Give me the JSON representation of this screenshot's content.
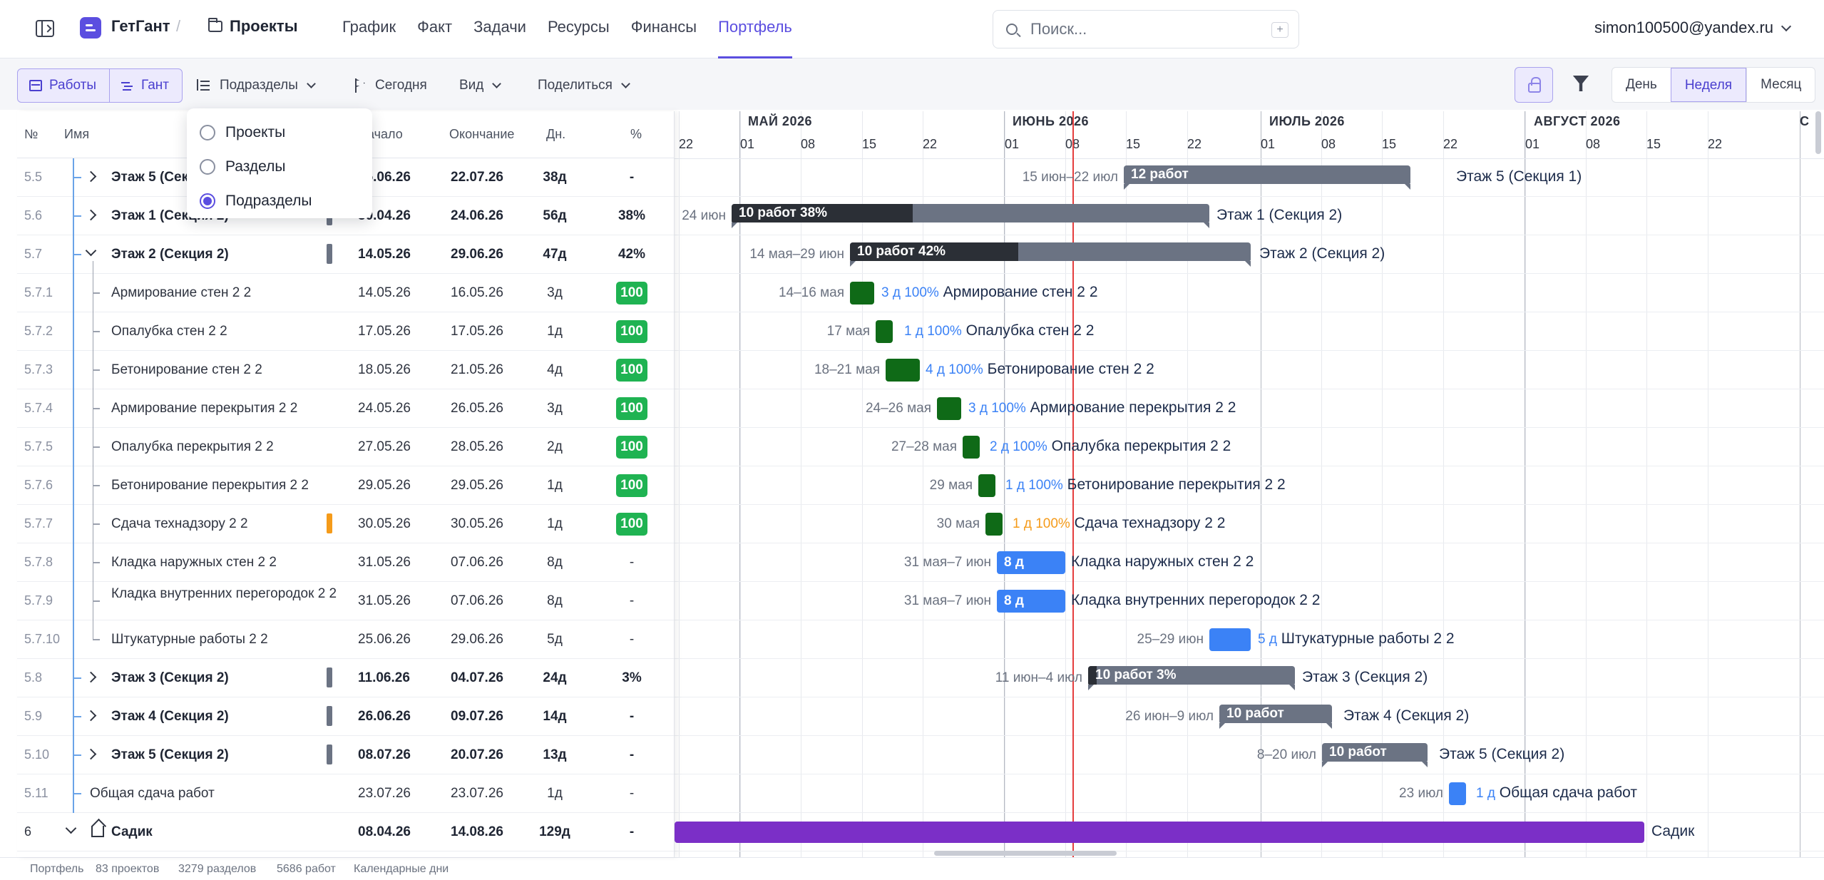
{
  "header": {
    "brand": "ГетГант",
    "breadcrumb_sep": "/",
    "crumb": "Проекты",
    "nav": [
      "График",
      "Факт",
      "Задачи",
      "Ресурсы",
      "Финансы",
      "Портфель"
    ],
    "active_nav": "Портфель",
    "search_placeholder": "Поиск...",
    "search_shortcut": "+",
    "user": "simon100500@yandex.ru"
  },
  "toolbar": {
    "works": "Работы",
    "gantt": "Гант",
    "group": "Подразделы",
    "today": "Сегодня",
    "view": "Вид",
    "share": "Поделиться",
    "scale": [
      "День",
      "Неделя",
      "Месяц"
    ],
    "active_scale": "Неделя"
  },
  "dropdown": {
    "options": [
      "Проекты",
      "Разделы",
      "Подразделы"
    ],
    "selected": "Подразделы"
  },
  "table": {
    "headers": {
      "num": "№",
      "name": "Имя",
      "start": "Начало",
      "end": "Окончание",
      "days": "Дн.",
      "pct": "%"
    },
    "rows": [
      {
        "num": "5.5",
        "name": "Этаж 5 (Секция 1)",
        "start": "15.06.26",
        "end": "22.07.26",
        "days": "38д",
        "pct": "-",
        "type": "group"
      },
      {
        "num": "5.6",
        "name": "Этаж 1 (Секция 2)",
        "start": "30.04.26",
        "end": "24.06.26",
        "days": "56д",
        "pct": "38%",
        "type": "group"
      },
      {
        "num": "5.7",
        "name": "Этаж 2 (Секция 2)",
        "start": "14.05.26",
        "end": "29.06.26",
        "days": "47д",
        "pct": "42%",
        "type": "group-open"
      },
      {
        "num": "5.7.1",
        "name": "Армирование стен 2 2",
        "start": "14.05.26",
        "end": "16.05.26",
        "days": "3д",
        "pct": "100",
        "type": "task"
      },
      {
        "num": "5.7.2",
        "name": "Опалубка стен 2 2",
        "start": "17.05.26",
        "end": "17.05.26",
        "days": "1д",
        "pct": "100",
        "type": "task"
      },
      {
        "num": "5.7.3",
        "name": "Бетонирование стен 2 2",
        "start": "18.05.26",
        "end": "21.05.26",
        "days": "4д",
        "pct": "100",
        "type": "task"
      },
      {
        "num": "5.7.4",
        "name": "Армирование перекрытия 2 2",
        "start": "24.05.26",
        "end": "26.05.26",
        "days": "3д",
        "pct": "100",
        "type": "task"
      },
      {
        "num": "5.7.5",
        "name": "Опалубка перекрытия 2 2",
        "start": "27.05.26",
        "end": "28.05.26",
        "days": "2д",
        "pct": "100",
        "type": "task"
      },
      {
        "num": "5.7.6",
        "name": "Бетонирование перекрытия 2 2",
        "start": "29.05.26",
        "end": "29.05.26",
        "days": "1д",
        "pct": "100",
        "type": "task"
      },
      {
        "num": "5.7.7",
        "name": "Сдача технадзору 2 2",
        "start": "30.05.26",
        "end": "30.05.26",
        "days": "1д",
        "pct": "100",
        "type": "task-milestone"
      },
      {
        "num": "5.7.8",
        "name": "Кладка наружных стен 2 2",
        "start": "31.05.26",
        "end": "07.06.26",
        "days": "8д",
        "pct": "-",
        "type": "task"
      },
      {
        "num": "5.7.9",
        "name": "Кладка внутренних перегородок 2 2",
        "start": "31.05.26",
        "end": "07.06.26",
        "days": "8д",
        "pct": "-",
        "type": "task-wrap"
      },
      {
        "num": "5.7.10",
        "name": "Штукатурные работы 2 2",
        "start": "25.06.26",
        "end": "29.06.26",
        "days": "5д",
        "pct": "-",
        "type": "task-last"
      },
      {
        "num": "5.8",
        "name": "Этаж 3 (Секция 2)",
        "start": "11.06.26",
        "end": "04.07.26",
        "days": "24д",
        "pct": "3%",
        "type": "group"
      },
      {
        "num": "5.9",
        "name": "Этаж 4 (Секция 2)",
        "start": "26.06.26",
        "end": "09.07.26",
        "days": "14д",
        "pct": "-",
        "type": "group"
      },
      {
        "num": "5.10",
        "name": "Этаж 5 (Секция 2)",
        "start": "08.07.26",
        "end": "20.07.26",
        "days": "13д",
        "pct": "-",
        "type": "group"
      },
      {
        "num": "5.11",
        "name": "Общая сдача работ",
        "start": "23.07.26",
        "end": "23.07.26",
        "days": "1д",
        "pct": "-",
        "type": "leaf"
      },
      {
        "num": "6",
        "name": "Садик",
        "start": "08.04.26",
        "end": "14.08.26",
        "days": "129д",
        "pct": "-",
        "type": "project"
      }
    ]
  },
  "timeline": {
    "months": [
      "МАЙ 2026",
      "ИЮНЬ 2026",
      "ИЮЛЬ 2026",
      "АВГУСТ 2026"
    ],
    "weeks": [
      "22",
      "01",
      "08",
      "15",
      "22",
      "01",
      "08",
      "15",
      "22",
      "01",
      "08",
      "15",
      "22",
      "01",
      "08",
      "15",
      "22"
    ],
    "edge_month": "С"
  },
  "gantt": {
    "bars": [
      {
        "date": "15 июн–22 июл",
        "bar_text": "12 работ",
        "label": "Этаж 5 (Секция 1)"
      },
      {
        "date": "24 июн",
        "bar_text": "10 работ  38%",
        "label": "Этаж 1 (Секция 2)"
      },
      {
        "date": "14 мая–29 июн",
        "bar_text": "10 работ  42%",
        "label": "Этаж 2 (Секция 2)"
      },
      {
        "date": "14–16 мая",
        "meta": "3 д 100%",
        "label": "Армирование стен 2 2"
      },
      {
        "date": "17 мая",
        "meta": "1 д 100%",
        "label": "Опалубка стен 2 2"
      },
      {
        "date": "18–21 мая",
        "meta": "4 д 100%",
        "label": "Бетонирование стен 2 2"
      },
      {
        "date": "24–26 мая",
        "meta": "3 д 100%",
        "label": "Армирование перекрытия 2 2"
      },
      {
        "date": "27–28 мая",
        "meta": "2 д 100%",
        "label": "Опалубка перекрытия 2 2"
      },
      {
        "date": "29 мая",
        "meta": "1 д 100%",
        "label": "Бетонирование перекрытия 2 2"
      },
      {
        "date": "30 мая",
        "meta": "1 д 100%",
        "label": "Сдача технадзору 2 2"
      },
      {
        "date": "31 мая–7 июн",
        "bar_text": "8 д",
        "label": "Кладка наружных стен 2 2"
      },
      {
        "date": "31 мая–7 июн",
        "bar_text": "8 д",
        "label": "Кладка внутренних перегородок 2 2"
      },
      {
        "date": "25–29 июн",
        "meta": "5 д",
        "label": "Штукатурные работы 2 2"
      },
      {
        "date": "11 июн–4 июл",
        "bar_text": "10 работ  3%",
        "label": "Этаж 3 (Секция 2)"
      },
      {
        "date": "26 июн–9 июл",
        "bar_text": "10 работ",
        "label": "Этаж 4 (Секция 2)"
      },
      {
        "date": "8–20 июл",
        "bar_text": "10 работ",
        "label": "Этаж 5 (Секция 2)"
      },
      {
        "date": "23 июл",
        "meta": "1 д",
        "label": "Общая сдача работ"
      },
      {
        "label": "Садик"
      }
    ]
  },
  "footer": {
    "portfolio": "Портфель",
    "projects": "83  проектов",
    "sections": "3279  разделов",
    "works": "5686  работ",
    "calendar": "Календарные  дни"
  },
  "colors": {
    "accent": "#5b4ee0",
    "done": "#0f6a17",
    "planned": "#3b82f6",
    "summary": "#6b7383",
    "progress": "#2b2f36",
    "project": "#7b2fc7",
    "today": "#e53e3e",
    "badge": "#1fb352",
    "milestone": "#f59b1a"
  }
}
